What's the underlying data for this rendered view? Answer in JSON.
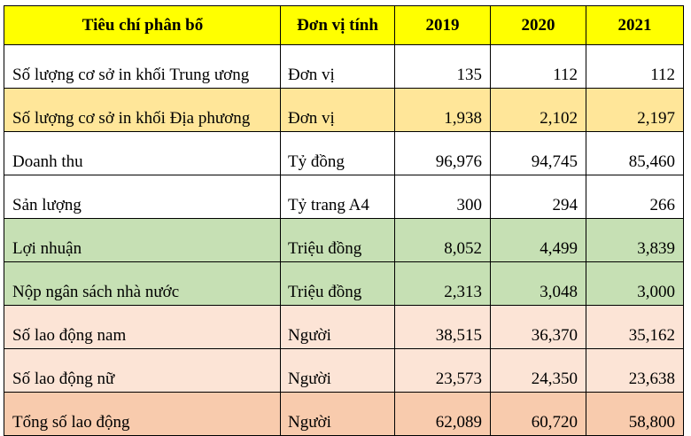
{
  "colors": {
    "header": "#ffff00",
    "white": "#ffffff",
    "gold": "#ffe699",
    "green": "#c6e0b4",
    "peach": "#fce4d6",
    "salmon": "#f8cbad"
  },
  "headers": [
    "Tiêu chí phân bổ",
    "Đơn vị tính",
    "2019",
    "2020",
    "2021"
  ],
  "rows": [
    {
      "criterion": "Số lượng cơ sở in khối Trung ương",
      "unit": "Đơn vị",
      "y2019": "135",
      "y2020": "112",
      "y2021": "112",
      "color": "white"
    },
    {
      "criterion": "Số lượng cơ sở in khối Địa phương",
      "unit": "Đơn vị",
      "y2019": "1,938",
      "y2020": "2,102",
      "y2021": "2,197",
      "color": "gold"
    },
    {
      "criterion": "Doanh thu",
      "unit": "Tỷ đồng",
      "y2019": "96,976",
      "y2020": "94,745",
      "y2021": "85,460",
      "color": "white"
    },
    {
      "criterion": "Sản lượng",
      "unit": "Tỷ trang A4",
      "y2019": "300",
      "y2020": "294",
      "y2021": "266",
      "color": "white"
    },
    {
      "criterion": "Lợi nhuận",
      "unit": "Triệu đồng",
      "y2019": "8,052",
      "y2020": "4,499",
      "y2021": "3,839",
      "color": "green"
    },
    {
      "criterion": "Nộp ngân sách nhà nước",
      "unit": "Triệu đồng",
      "y2019": "2,313",
      "y2020": "3,048",
      "y2021": "3,000",
      "color": "green"
    },
    {
      "criterion": "Số lao động nam",
      "unit": "Người",
      "y2019": "38,515",
      "y2020": "36,370",
      "y2021": "35,162",
      "color": "peach"
    },
    {
      "criterion": "Số lao động nữ",
      "unit": "Người",
      "y2019": "23,573",
      "y2020": "24,350",
      "y2021": "23,638",
      "color": "peach"
    },
    {
      "criterion": "Tổng số lao động",
      "unit": "Người",
      "y2019": "62,089",
      "y2020": "60,720",
      "y2021": "58,800",
      "color": "salmon"
    }
  ]
}
